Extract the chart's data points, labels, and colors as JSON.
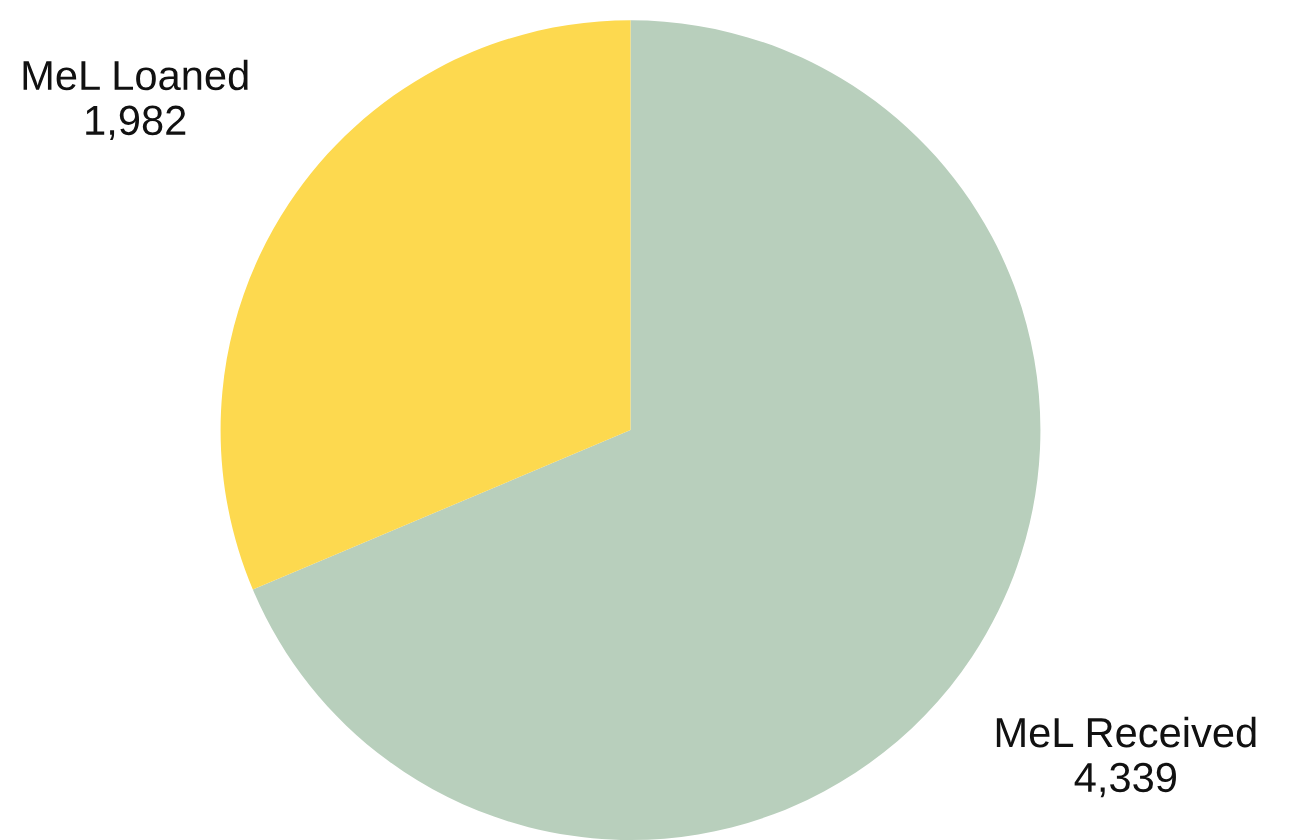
{
  "chart_data": {
    "type": "pie",
    "categories": [
      "MeL Received",
      "MeL Loaned"
    ],
    "values": [
      4339,
      1982
    ],
    "value_labels": [
      "4,339",
      "1,982"
    ],
    "colors": [
      "#b8cfbc",
      "#fdd94f"
    ]
  }
}
